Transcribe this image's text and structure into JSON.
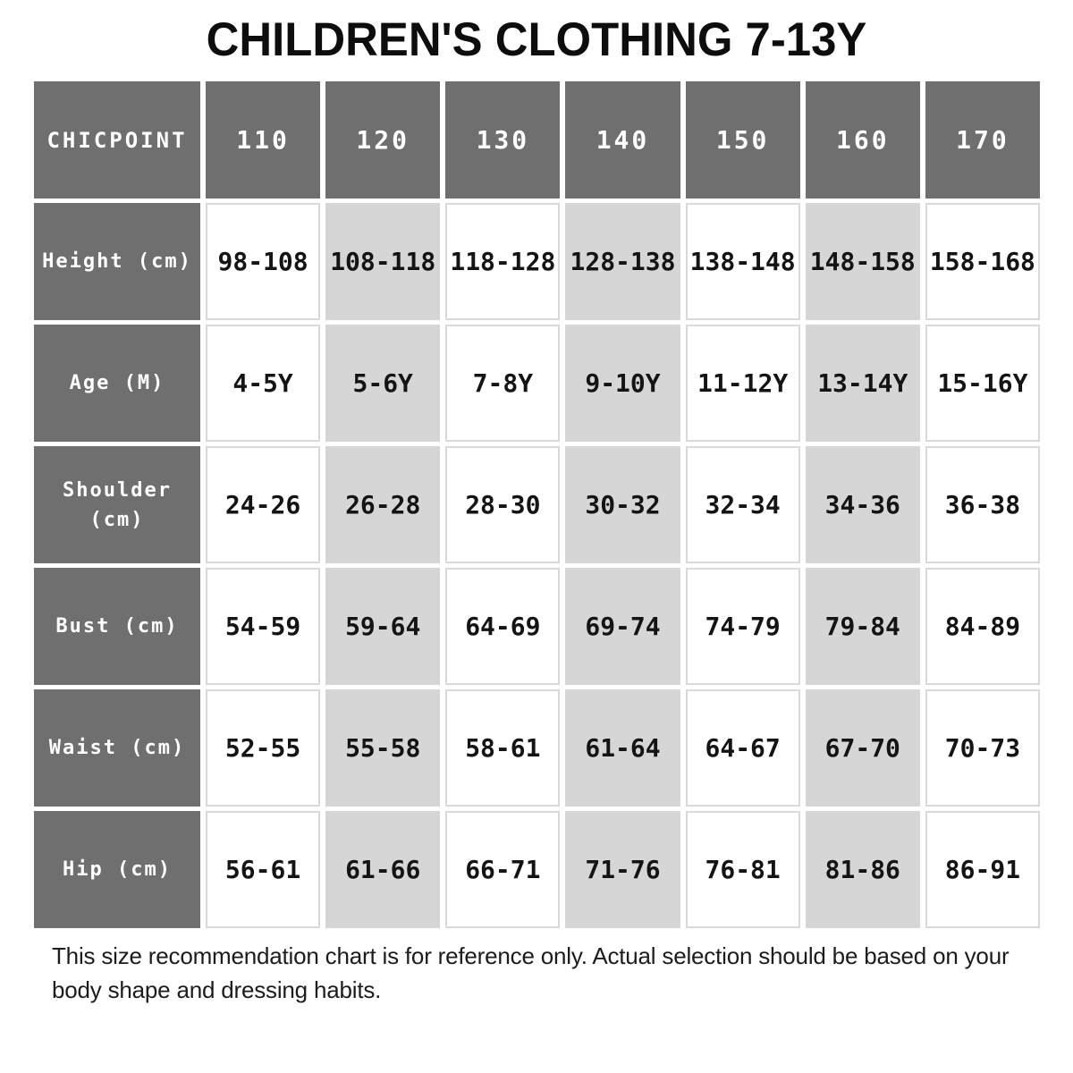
{
  "title": "CHILDREN'S CLOTHING 7-13Y",
  "footer_note": "This size recommendation chart is for reference only. Actual selection should be based on your body shape and dressing habits.",
  "colors": {
    "header_bg": "#6f6f6f",
    "shaded_cell_bg": "#d6d6d6",
    "cell_border": "#d9d9d9",
    "header_text": "#ffffff",
    "body_text": "#141414"
  },
  "chart_data": {
    "type": "table",
    "title": "CHILDREN'S CLOTHING 7-13Y",
    "brand": "CHICPOINT",
    "columns": [
      "CHICPOINT",
      "110",
      "120",
      "130",
      "140",
      "150",
      "160",
      "170"
    ],
    "rows": [
      [
        "Height (cm)",
        "98-108",
        "108-118",
        "118-128",
        "128-138",
        "138-148",
        "148-158",
        "158-168"
      ],
      [
        "Age (M)",
        "4-5Y",
        "5-6Y",
        "7-8Y",
        "9-10Y",
        "11-12Y",
        "13-14Y",
        "15-16Y"
      ],
      [
        "Shoulder (cm)",
        "24-26",
        "26-28",
        "28-30",
        "30-32",
        "32-34",
        "34-36",
        "36-38"
      ],
      [
        "Bust (cm)",
        "54-59",
        "59-64",
        "64-69",
        "69-74",
        "74-79",
        "79-84",
        "84-89"
      ],
      [
        "Waist (cm)",
        "52-55",
        "55-58",
        "58-61",
        "61-64",
        "64-67",
        "67-70",
        "70-73"
      ],
      [
        "Hip (cm)",
        "56-61",
        "61-66",
        "66-71",
        "71-76",
        "76-81",
        "81-86",
        "86-91"
      ]
    ],
    "shaded_columns": [
      "120",
      "140",
      "160"
    ],
    "layout_hint": "first column and header row dark gray; size columns 120/140/160 shaded light gray"
  }
}
